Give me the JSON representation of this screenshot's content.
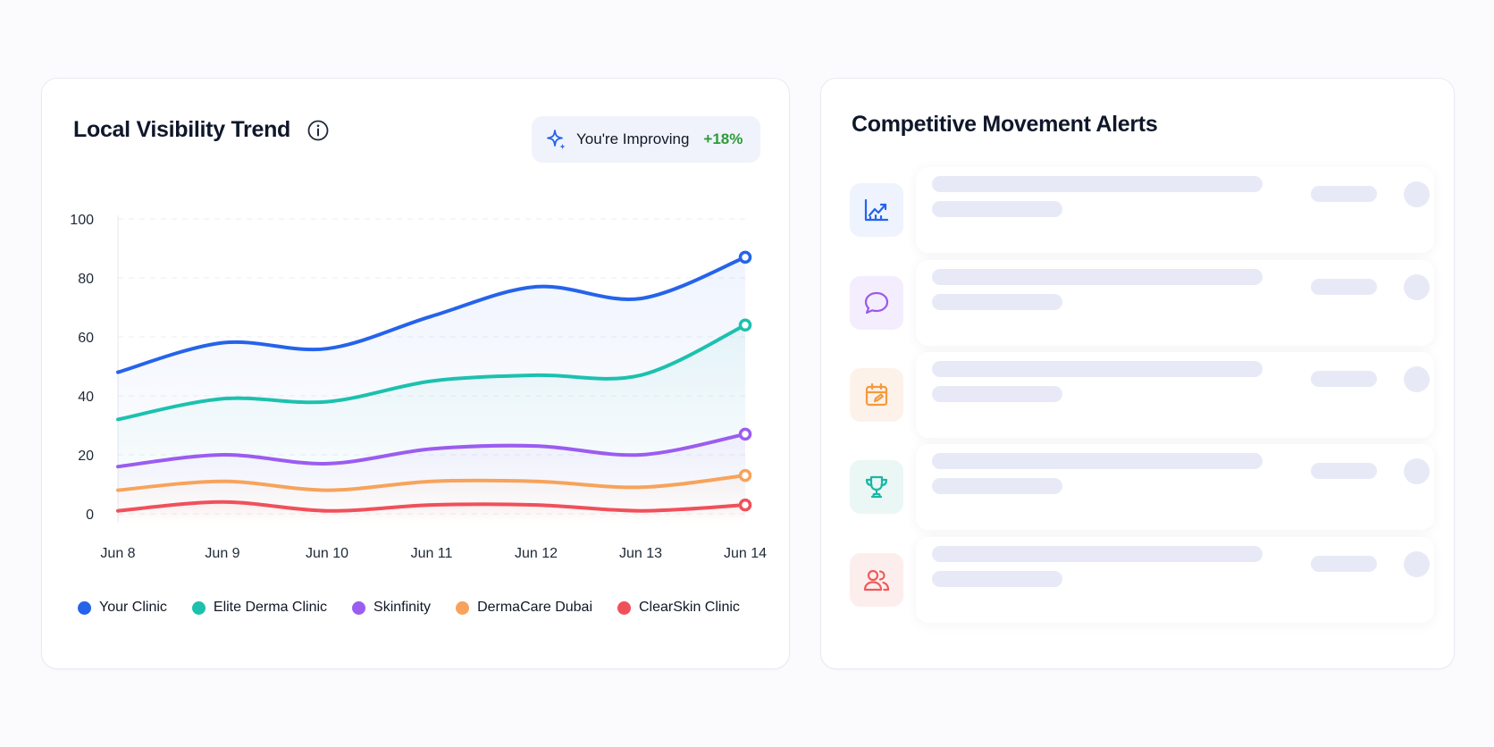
{
  "left_card": {
    "title": "Local Visibility Trend",
    "info_icon": "info-circle-icon",
    "badge": {
      "icon": "sparkle-icon",
      "text": "You're Improving",
      "delta": "+18%",
      "delta_color": "#2e9b3a"
    }
  },
  "right_card": {
    "title": "Competitive Movement Alerts",
    "alerts": [
      {
        "icon": "trend-up-chart-icon",
        "color": "#2563eb",
        "bg": "#eef3fe"
      },
      {
        "icon": "chat-bubble-icon",
        "color": "#9b59ea",
        "bg": "#f3edfd"
      },
      {
        "icon": "calendar-edit-icon",
        "color": "#f39a3d",
        "bg": "#fdf2ea"
      },
      {
        "icon": "trophy-icon",
        "color": "#1bb6a5",
        "bg": "#eaf7f5"
      },
      {
        "icon": "users-icon",
        "color": "#ef5b5b",
        "bg": "#fdeeee"
      }
    ]
  },
  "chart_data": {
    "type": "line",
    "title": "Local Visibility Trend",
    "xlabel": "",
    "ylabel": "",
    "x": [
      "Jun 8",
      "Jun 9",
      "Jun 10",
      "Jun 11",
      "Jun 12",
      "Jun 13",
      "Jun 14"
    ],
    "yticks": [
      "100",
      "80",
      "60",
      "40",
      "20",
      "0"
    ],
    "ylim": [
      0,
      100
    ],
    "grid": true,
    "legend_position": "bottom",
    "series": [
      {
        "name": "Your Clinic",
        "color": "#2563eb",
        "values": [
          48,
          58,
          56,
          67,
          77,
          73,
          87
        ]
      },
      {
        "name": "Elite Derma Clinic",
        "color": "#1cc1ae",
        "values": [
          32,
          39,
          38,
          45,
          47,
          47,
          64
        ]
      },
      {
        "name": "Skinfinity",
        "color": "#9b5cf0",
        "values": [
          16,
          20,
          17,
          22,
          23,
          20,
          27
        ]
      },
      {
        "name": "DermaCare Dubai",
        "color": "#f7a35c",
        "values": [
          8,
          11,
          8,
          11,
          11,
          9,
          13
        ]
      },
      {
        "name": "ClearSkin Clinic",
        "color": "#f0505a",
        "values": [
          1,
          4,
          1,
          3,
          3,
          1,
          3
        ]
      }
    ]
  }
}
